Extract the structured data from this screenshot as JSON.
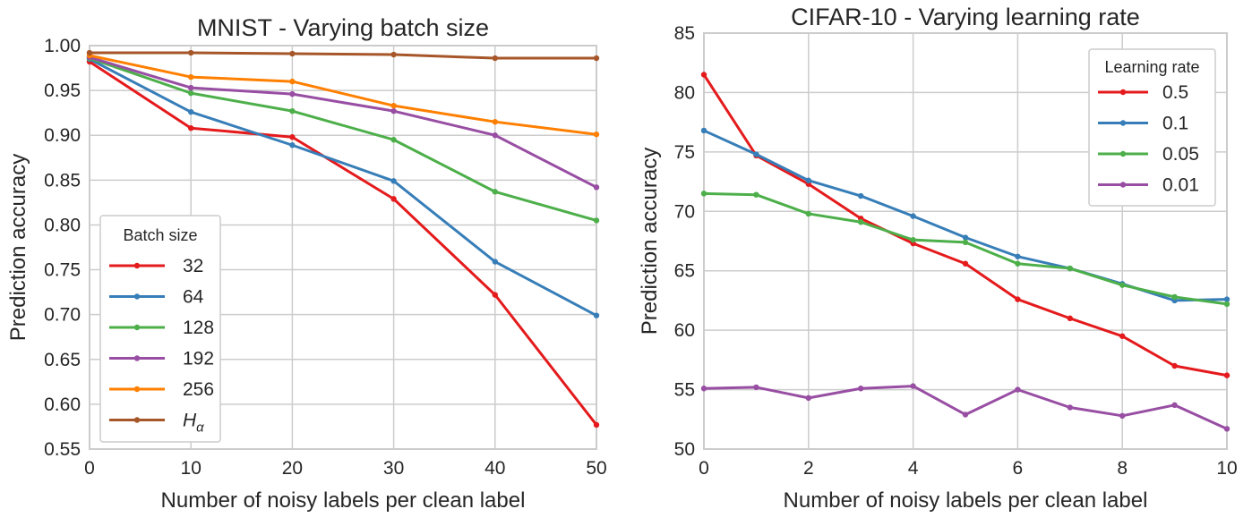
{
  "chart_data": [
    {
      "type": "line",
      "title": "MNIST - Varying batch size",
      "xlabel": "Number of noisy labels per clean label",
      "ylabel": "Prediction accuracy",
      "xlim": [
        0,
        50
      ],
      "ylim": [
        0.55,
        1.0
      ],
      "xticks": [
        "0",
        "10",
        "20",
        "30",
        "40",
        "50"
      ],
      "yticks": [
        "0.55",
        "0.60",
        "0.65",
        "0.70",
        "0.75",
        "0.80",
        "0.85",
        "0.90",
        "0.95",
        "1.00"
      ],
      "grid": true,
      "legend": {
        "title": "Batch size",
        "placement": "lower-left"
      },
      "x": [
        0,
        10,
        20,
        30,
        40,
        50
      ],
      "series": [
        {
          "name": "32",
          "color": "#e41a1c",
          "values": [
            0.982,
            0.908,
            0.898,
            0.829,
            0.722,
            0.577
          ]
        },
        {
          "name": "64",
          "color": "#377eb8",
          "values": [
            0.985,
            0.926,
            0.889,
            0.849,
            0.759,
            0.699
          ]
        },
        {
          "name": "128",
          "color": "#4daf4a",
          "values": [
            0.986,
            0.947,
            0.927,
            0.895,
            0.837,
            0.805
          ]
        },
        {
          "name": "192",
          "color": "#984ea3",
          "values": [
            0.987,
            0.953,
            0.946,
            0.927,
            0.9,
            0.842
          ]
        },
        {
          "name": "256",
          "color": "#ff7f00",
          "values": [
            0.989,
            0.965,
            0.96,
            0.933,
            0.915,
            0.901
          ]
        },
        {
          "name": "H",
          "subscript": "α",
          "color": "#a65628",
          "values": [
            0.992,
            0.992,
            0.991,
            0.99,
            0.986,
            0.986
          ]
        }
      ]
    },
    {
      "type": "line",
      "title": "CIFAR-10 - Varying learning rate",
      "xlabel": "Number of noisy labels per clean label",
      "ylabel": "Prediction accuracy",
      "xlim": [
        0,
        10
      ],
      "ylim": [
        50,
        85
      ],
      "xticks": [
        "0",
        "2",
        "4",
        "6",
        "8",
        "10"
      ],
      "yticks": [
        "50",
        "55",
        "60",
        "65",
        "70",
        "75",
        "80",
        "85"
      ],
      "grid": true,
      "legend": {
        "title": "Learning rate",
        "placement": "top-right"
      },
      "x": [
        0,
        1,
        2,
        3,
        4,
        5,
        6,
        7,
        8,
        9,
        10
      ],
      "series": [
        {
          "name": "0.5",
          "color": "#e41a1c",
          "values": [
            81.5,
            74.7,
            72.3,
            69.4,
            67.3,
            65.6,
            62.6,
            61.0,
            59.5,
            57.0,
            56.2
          ]
        },
        {
          "name": "0.1",
          "color": "#377eb8",
          "values": [
            76.8,
            74.8,
            72.6,
            71.3,
            69.6,
            67.8,
            66.2,
            65.2,
            63.9,
            62.5,
            62.6
          ]
        },
        {
          "name": "0.05",
          "color": "#4daf4a",
          "values": [
            71.5,
            71.4,
            69.8,
            69.1,
            67.6,
            67.4,
            65.6,
            65.2,
            63.8,
            62.8,
            62.2
          ]
        },
        {
          "name": "0.01",
          "color": "#984ea3",
          "values": [
            55.1,
            55.2,
            54.3,
            55.1,
            55.3,
            52.9,
            55.0,
            53.5,
            52.8,
            53.7,
            51.7
          ]
        }
      ]
    }
  ]
}
